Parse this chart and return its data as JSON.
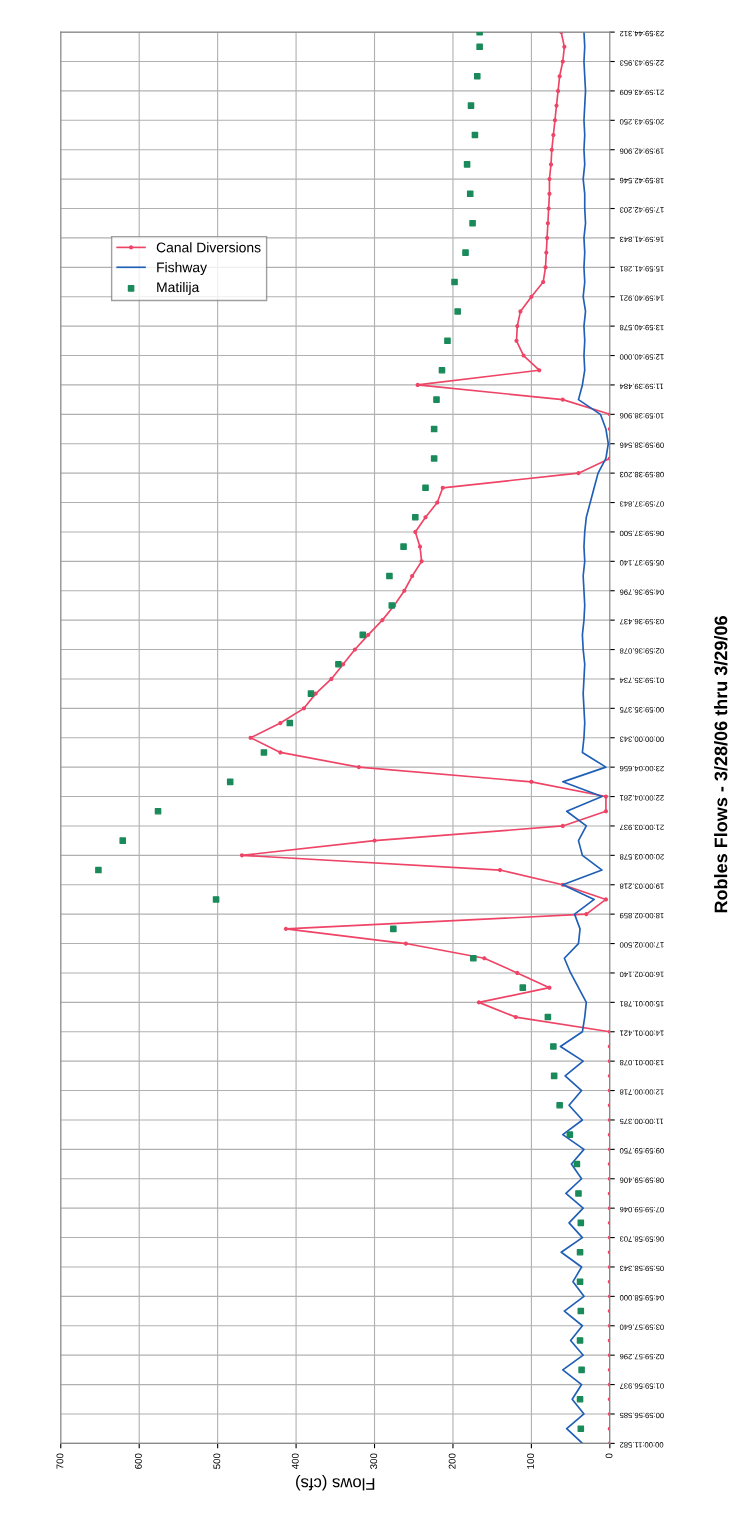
{
  "chart_data": {
    "type": "line",
    "orientation": "horizontal",
    "title": "Robles Flows - 3/28/06 thru 3/29/06",
    "xlabel": "Flows (cfs)",
    "xlim": [
      700,
      0
    ],
    "xticks": [
      0,
      100,
      200,
      300,
      400,
      500,
      600,
      700
    ],
    "categories": [
      "23:59:44.312",
      null,
      "22:59:43.953",
      null,
      "21:59:43.609",
      null,
      "20:59:43.250",
      null,
      "19:59:42.906",
      null,
      "18:59:42.546",
      null,
      "17:59:42.203",
      null,
      "16:59:41.843",
      null,
      "15:59:41.281",
      null,
      "14:59:40.921",
      null,
      "13:59:40.578",
      null,
      "12:59:40.000",
      null,
      "11:59:39.484",
      null,
      "10:59:38.906",
      null,
      "09:59:38.546",
      null,
      "08:59:38.203",
      null,
      "07:59:37.843",
      null,
      "06:59:37.500",
      null,
      "05:59:37.140",
      null,
      "04:59:36.796",
      null,
      "03:59:36.437",
      null,
      "02:59:36.078",
      null,
      "01:59:35.734",
      null,
      "00:59:35.375",
      null,
      "00:00:00.343",
      null,
      "23:00:04.656",
      null,
      "22:00:04.281",
      null,
      "21:00:03.937",
      null,
      "20:00:03.578",
      null,
      "19:00:03.218",
      null,
      "18:00:02.859",
      null,
      "17:00:02.500",
      null,
      "16:00:02.140",
      null,
      "15:00:01.781",
      null,
      "14:00:01.421",
      null,
      "13:00:01.078",
      null,
      "12:00:00.718",
      null,
      "11:00:00.375",
      null,
      "09:59:59.750",
      null,
      "08:59:59.406",
      null,
      "07:59:59.046",
      null,
      "06:59:58.703",
      null,
      "05:59:58.343",
      null,
      "04:59:58.000",
      null,
      "03:59:57.640",
      null,
      "02:59:57.296",
      null,
      "01:59:56.937",
      null,
      "00:59:56.585",
      null,
      "00:00:11.582"
    ],
    "grid": true,
    "legend": "top left",
    "series": [
      {
        "name": "Canal Diversions",
        "marker": "circle",
        "color": "#ee4466",
        "values": [
          62,
          58,
          60,
          64,
          66,
          68,
          70,
          72,
          74,
          75,
          77,
          77,
          78,
          79,
          80,
          81,
          82,
          85,
          100,
          114,
          118,
          119,
          110,
          90,
          245,
          60,
          0,
          0,
          0,
          0,
          40,
          213,
          220,
          235,
          248,
          242,
          240,
          252,
          262,
          275,
          290,
          308,
          325,
          340,
          355,
          375,
          390,
          420,
          458,
          420,
          320,
          100,
          5,
          5,
          60,
          300,
          469,
          140,
          60,
          5,
          30,
          413,
          260,
          160,
          118,
          77,
          167,
          120,
          0,
          0,
          0,
          0,
          0,
          0,
          0,
          0,
          0,
          0,
          0,
          0,
          0,
          0,
          0,
          0,
          0,
          0,
          0,
          0,
          0,
          0,
          0,
          0,
          0,
          0,
          0,
          0,
          0
        ]
      },
      {
        "name": "Fishway",
        "marker": "none",
        "color": "#1f5fb5",
        "values": [
          33,
          32,
          33,
          32,
          31,
          32,
          33,
          32,
          33,
          32,
          34,
          32,
          32,
          31,
          33,
          32,
          33,
          32,
          34,
          31,
          33,
          32,
          33,
          32,
          35,
          40,
          12,
          5,
          2,
          5,
          15,
          20,
          25,
          30,
          32,
          33,
          32,
          34,
          33,
          32,
          33,
          35,
          34,
          32,
          33,
          34,
          33,
          32,
          33,
          35,
          5,
          60,
          10,
          55,
          30,
          40,
          35,
          10,
          60,
          20,
          45,
          38,
          40,
          58,
          50,
          40,
          30,
          32,
          35,
          63,
          34,
          57,
          36,
          52,
          35,
          60,
          33,
          49,
          36,
          56,
          34,
          52,
          35,
          62,
          36,
          47,
          33,
          58,
          35,
          50,
          34,
          60,
          36,
          48,
          33,
          55,
          35
        ]
      },
      {
        "name": "Matilija",
        "type": "scatter",
        "marker": "square",
        "color": "#1a8a5a",
        "values": [
          166,
          166,
          null,
          169,
          null,
          177,
          null,
          172,
          null,
          182,
          null,
          178,
          null,
          175,
          null,
          184,
          null,
          198,
          null,
          194,
          null,
          207,
          null,
          214,
          null,
          221,
          null,
          224,
          null,
          224,
          null,
          235,
          null,
          248,
          null,
          263,
          null,
          281,
          null,
          278,
          null,
          315,
          null,
          346,
          null,
          381,
          null,
          408,
          null,
          441,
          null,
          484,
          null,
          576,
          null,
          621,
          null,
          652,
          null,
          502,
          null,
          276,
          null,
          174,
          null,
          111,
          null,
          79,
          null,
          72,
          null,
          71,
          null,
          64,
          null,
          51,
          null,
          42,
          null,
          40,
          null,
          37,
          null,
          38,
          null,
          38,
          null,
          37,
          null,
          38,
          null,
          36,
          null,
          38,
          null,
          37,
          null
        ]
      }
    ]
  }
}
